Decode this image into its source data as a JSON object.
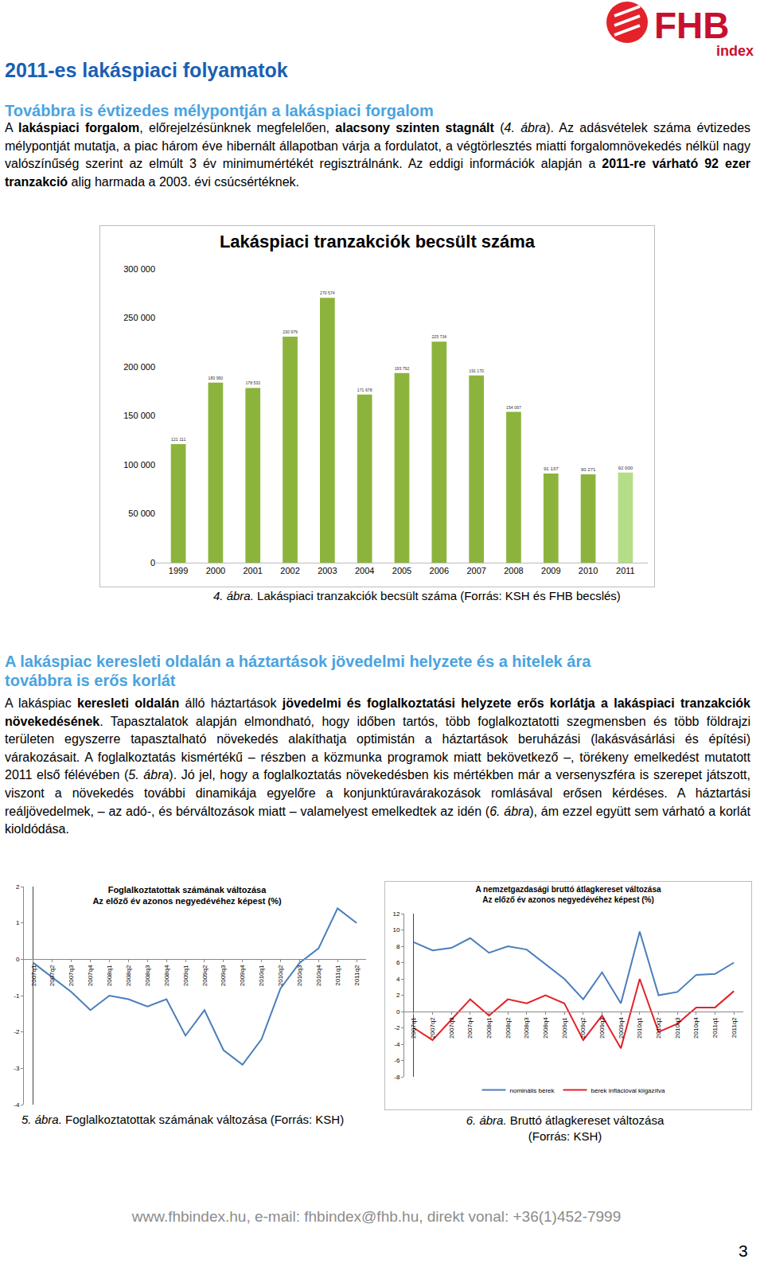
{
  "logo": {
    "name": "FHB",
    "sub": "index"
  },
  "title": "2011-es lakáspiaci folyamatok",
  "section1": {
    "heading": "Továbbra is évtizedes mélypontján a lakáspiaci forgalom",
    "paragraph": [
      {
        "text": "A "
      },
      {
        "text": "lakáspiaci forgalom",
        "style": "bold"
      },
      {
        "text": ", előrejelzésünknek megfelelően, "
      },
      {
        "text": "alacsony szinten stagnált",
        "style": "bold"
      },
      {
        "text": " ("
      },
      {
        "text": "4. ábra",
        "style": "italic"
      },
      {
        "text": "). Az adásvételek száma évtizedes mélypontját mutatja, a piac három éve hibernált állapotban várja a fordulatot, a végtörlesztés miatti forgalomnövekedés nélkül nagy valószínűség szerint az elmúlt 3 év minimumértékét regisztrálnánk. Az eddigi információk alapján a "
      },
      {
        "text": "2011-re várható 92 ezer tranzakció",
        "style": "bold"
      },
      {
        "text": " alig harmada a 2003. évi csúcsértéknek."
      }
    ]
  },
  "figure4": {
    "label": "4. ábra.",
    "caption": "Lakáspiaci tranzakciók becsült száma (Forrás: KSH és FHB becslés)"
  },
  "section2": {
    "heading": [
      "A lakáspiac keresleti oldalán a háztartások jövedelmi helyzete és a hitelek ára",
      "továbbra is erős korlát"
    ],
    "paragraph": [
      {
        "text": "A lakáspiac "
      },
      {
        "text": "keresleti oldalán",
        "style": "bold"
      },
      {
        "text": " álló háztartások "
      },
      {
        "text": "jövedelmi és foglalkoztatási helyzete erős korlátja a lakáspiaci tranzakciók növekedésének",
        "style": "bold"
      },
      {
        "text": ". Tapasztalatok alapján elmondható, hogy időben tartós, több foglalkoztatotti szegmensben és több földrajzi területen egyszerre tapasztalható növekedés alakíthatja optimistán a háztartások beruházási (lakásvásárlási és építési) várakozásait. A foglalkoztatás kismértékű – részben a közmunka programok miatt bekövetkező –, törékeny emelkedést mutatott 2011 első félévében ("
      },
      {
        "text": "5. ábra",
        "style": "italic"
      },
      {
        "text": "). Jó jel, hogy a foglalkoztatás növekedésben kis mértékben már a versenyszféra is szerepet játszott, viszont a növekedés további dinamikája egyelőre a konjunktúravárakozások romlásával erősen kérdéses. A háztartási reáljövedelmek, – az adó-, és bérváltozások miatt – valamelyest emelkedtek az idén ("
      },
      {
        "text": "6. ábra",
        "style": "italic"
      },
      {
        "text": "), ám ezzel együtt sem várható a korlát kioldódása."
      }
    ]
  },
  "figure5": {
    "label": "5. ábra.",
    "caption": "Foglalkoztatottak számának változása (Forrás: KSH)"
  },
  "figure6": {
    "label": "6. ábra.",
    "caption": "Bruttó átlagkereset változása",
    "source": "(Forrás: KSH)"
  },
  "footer": "www.fhbindex.hu, e-mail: fhbindex@fhb.hu, direkt vonal: +36(1)452-7999",
  "page_number": "3",
  "chart_data": [
    {
      "type": "bar",
      "title": "Lakáspiaci tranzakciók becsült száma",
      "categories": [
        "1999",
        "2000",
        "2001",
        "2002",
        "2003",
        "2004",
        "2005",
        "2006",
        "2007",
        "2008",
        "2009",
        "2010",
        "2011"
      ],
      "values": [
        121111,
        183950,
        178532,
        230979,
        270574,
        171678,
        193792,
        225734,
        191170,
        154097,
        91137,
        90271,
        92000
      ],
      "value_labels": [
        "121 111",
        "183 950",
        "178 532",
        "230 979",
        "270 574",
        "171 678",
        "193 792",
        "225 734",
        "191 170",
        "154 097",
        "91 137",
        "90 271",
        "92 000"
      ],
      "colors": [
        "#8cb43c",
        "#8cb43c",
        "#8cb43c",
        "#8cb43c",
        "#8cb43c",
        "#8cb43c",
        "#8cb43c",
        "#8cb43c",
        "#8cb43c",
        "#8cb43c",
        "#8cb43c",
        "#8cb43c",
        "#b3dd86"
      ],
      "ylim": [
        0,
        300000
      ],
      "yticks": [
        0,
        {
          "value": 50000,
          "label": "50 000"
        },
        {
          "value": 100000,
          "label": "100 000"
        },
        {
          "value": 150000,
          "label": "150 000"
        },
        {
          "value": 200000,
          "label": "200 000"
        },
        {
          "value": 250000,
          "label": "250 000"
        },
        {
          "value": 300000,
          "label": "300 000"
        }
      ],
      "data_labels": true,
      "grid": false
    },
    {
      "type": "line",
      "title": "Foglalkoztatottak számának változása",
      "subtitle": "Az előző év azonos negyedévéhez képest (%)",
      "categories": [
        "2007q1",
        "2007q2",
        "2007q3",
        "2007q4",
        "2008q1",
        "2008q2",
        "2008q3",
        "2008q4",
        "2009q1",
        "2009q2",
        "2009q3",
        "2009q4",
        "2010q1",
        "2010q2",
        "2010q3",
        "2010q4",
        "2011q1",
        "2011q2"
      ],
      "values": [
        -0.1,
        -0.5,
        -0.9,
        -1.4,
        -1.0,
        -1.1,
        -1.3,
        -1.1,
        -2.1,
        -1.4,
        -2.5,
        -2.9,
        -2.2,
        -0.8,
        -0.1,
        0.3,
        1.4,
        1.0
      ],
      "color": "#4a7ebb",
      "ylim": [
        -4,
        2
      ],
      "yticks": [
        -4,
        -3,
        -2,
        -1,
        0,
        1,
        2
      ],
      "grid": false
    },
    {
      "type": "line",
      "title": "A nemzetgazdasági bruttó átlagkereset változása",
      "subtitle": "Az előző év azonos negyedévéhez képest (%)",
      "categories": [
        "2007q1",
        "2007q2",
        "2007q3",
        "2007q4",
        "2008q1",
        "2008q2",
        "2008q3",
        "2008q4",
        "2009q1",
        "2009q2",
        "2009q3",
        "2009q4",
        "2010q1",
        "2010q2",
        "2010q3",
        "2010q4",
        "2011q1",
        "2011q2"
      ],
      "series": [
        {
          "name": "nominális bérek",
          "color": "#4a7ebb",
          "values": [
            8.5,
            7.5,
            7.8,
            9.0,
            7.2,
            8.0,
            7.6,
            5.8,
            4.0,
            1.5,
            4.8,
            1.0,
            9.8,
            2.0,
            2.4,
            4.5,
            4.6,
            6.0
          ]
        },
        {
          "name": "bérek inflációval kiigazítva",
          "color": "#e4222a",
          "values": [
            -2.0,
            -3.5,
            -1.0,
            1.5,
            -0.5,
            1.5,
            1.0,
            2.0,
            1.0,
            -3.5,
            -0.5,
            -4.5,
            4.0,
            -2.5,
            -1.5,
            0.5,
            0.5,
            2.5
          ]
        }
      ],
      "ylim": [
        -8,
        12
      ],
      "yticks": [
        -8,
        -6,
        -4,
        -2,
        0,
        2,
        4,
        6,
        8,
        10,
        12
      ],
      "legend": "bottom",
      "grid": false
    }
  ]
}
